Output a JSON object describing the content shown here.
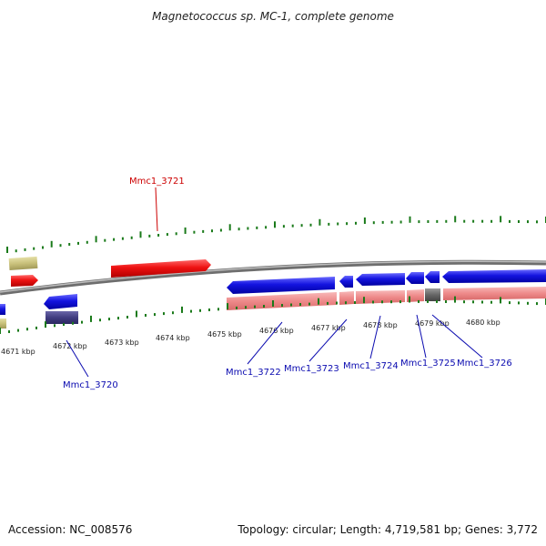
{
  "title": "Magnetococcus sp. MC-1, complete genome",
  "footer": {
    "accession": "Accession: NC_008576",
    "stats": "Topology: circular; Length: 4,719,581 bp; Genes: 3,772"
  },
  "scale_labels": [
    "4671 kbp",
    "4672 kbp",
    "4673 kbp",
    "4674 kbp",
    "4675 kbp",
    "4676 kbp",
    "4677 kbp",
    "4678 kbp",
    "4679 kbp",
    "4680 kbp"
  ],
  "genes": [
    {
      "id": "Mmc1_3720",
      "color": "#0b0bb0"
    },
    {
      "id": "Mmc1_3721",
      "color": "#cc0000"
    },
    {
      "id": "Mmc1_3722",
      "color": "#0b0bb0"
    },
    {
      "id": "Mmc1_3723",
      "color": "#0b0bb0"
    },
    {
      "id": "Mmc1_3724",
      "color": "#0b0bb0"
    },
    {
      "id": "Mmc1_3725",
      "color": "#0b0bb0"
    },
    {
      "id": "Mmc1_3726",
      "color": "#0b0bb0"
    }
  ],
  "colors": {
    "forward_cds": "#ee1111",
    "reverse_cds": "#1414e0",
    "rna": "#c8c07a",
    "reverse_shadow": "#ee8a8a",
    "dark_block": "#403c80",
    "tick": "#1a7a1a",
    "backbone": "#8a8a8a"
  }
}
